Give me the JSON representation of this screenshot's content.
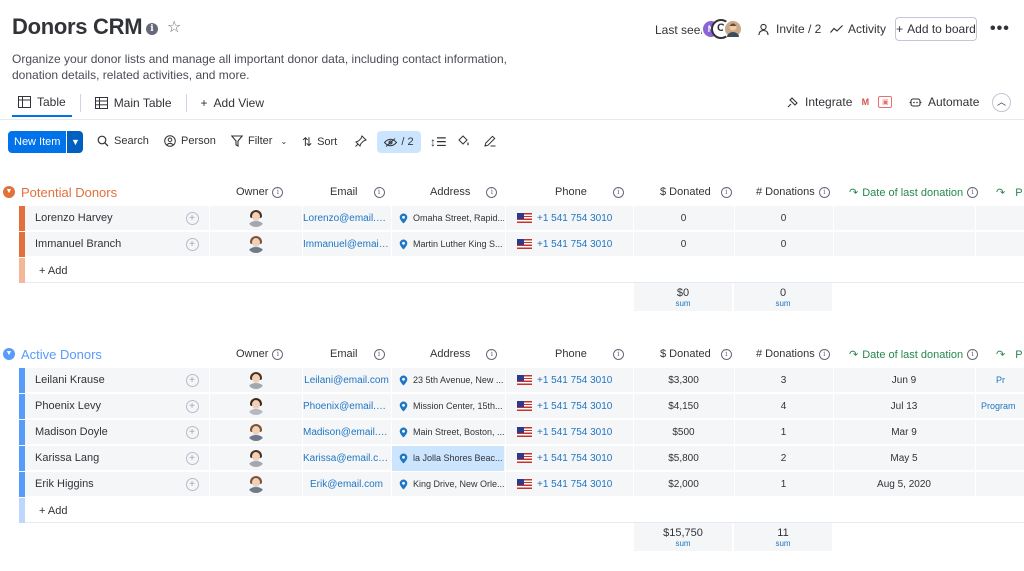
{
  "header": {
    "title": "Donors CRM",
    "description": "Organize your donor lists and manage all important donor data, including contact information, donation details, related activities, and more.",
    "last_seen_label": "Last seen",
    "avatar_initial": "N",
    "invite_label": "Invite / 2",
    "activity_label": "Activity",
    "add_to_board_label": "Add to board",
    "more_label": "•••"
  },
  "views": {
    "tabs": [
      {
        "label": "Table",
        "active": true
      },
      {
        "label": "Main Table",
        "active": false
      }
    ],
    "add_view_label": "Add View",
    "integrate_label": "Integrate",
    "automate_label": "Automate"
  },
  "toolbar": {
    "new_item_label": "New Item",
    "search_label": "Search",
    "person_label": "Person",
    "filter_label": "Filter",
    "sort_label": "Sort",
    "hidden_count_label": "/ 2"
  },
  "columns": {
    "owner": "Owner",
    "email": "Email",
    "address": "Address",
    "phone": "Phone",
    "donated": "$ Donated",
    "donations": "# Donations",
    "date_last": "Date of last donation",
    "extra": "P"
  },
  "colors": {
    "primary": "#0073ea",
    "potential_group": "#e2703a",
    "active_group": "#579bfc",
    "date_column": "#258750"
  },
  "groups": [
    {
      "title": "Potential Donors",
      "color": "#e2703a",
      "add_label": "+ Add",
      "rows": [
        {
          "name": "Lorenzo Harvey",
          "owner": "female",
          "email": "Lorenzo@email.co...",
          "address": "Omaha Street, Rapid...",
          "phone": "+1 541 754 3010",
          "donated": "0",
          "donations": "0",
          "date": "",
          "extra": ""
        },
        {
          "name": "Immanuel Branch",
          "owner": "male",
          "email": "Immanuel@email....",
          "address": "Martin Luther King S...",
          "phone": "+1 541 754 3010",
          "donated": "0",
          "donations": "0",
          "date": "",
          "extra": ""
        }
      ],
      "sum_donated": "$0",
      "sum_donations": "0",
      "sum_label": "sum"
    },
    {
      "title": "Active Donors",
      "color": "#579bfc",
      "add_label": "+ Add",
      "rows": [
        {
          "name": "Leilani Krause",
          "owner": "female",
          "email": "Leilani@email.com",
          "address": "23 5th Avenue, New ...",
          "phone": "+1 541 754 3010",
          "donated": "$3,300",
          "donations": "3",
          "date": "Jun 9",
          "extra": "Pr"
        },
        {
          "name": "Phoenix Levy",
          "owner": "female",
          "email": "Phoenix@email.co...",
          "address": "Mission Center, 15th...",
          "phone": "+1 541 754 3010",
          "donated": "$4,150",
          "donations": "4",
          "date": "Jul 13",
          "extra": "Program"
        },
        {
          "name": "Madison Doyle",
          "owner": "male",
          "email": "Madison@email.c...",
          "address": "Main Street, Boston, ...",
          "phone": "+1 541 754 3010",
          "donated": "$500",
          "donations": "1",
          "date": "Mar 9",
          "extra": ""
        },
        {
          "name": "Karissa Lang",
          "owner": "female",
          "email": "Karissa@email.co...",
          "address": "la Jolla Shores Beac...",
          "phone": "+1 541 754 3010",
          "donated": "$5,800",
          "donations": "2",
          "date": "May 5",
          "extra": ""
        },
        {
          "name": "Erik Higgins",
          "owner": "male",
          "email": "Erik@email.com",
          "address": "King Drive, New Orle...",
          "phone": "+1 541 754 3010",
          "donated": "$2,000",
          "donations": "1",
          "date": "Aug 5, 2020",
          "extra": ""
        }
      ],
      "sum_donated": "$15,750",
      "sum_donations": "11",
      "sum_label": "sum"
    }
  ]
}
